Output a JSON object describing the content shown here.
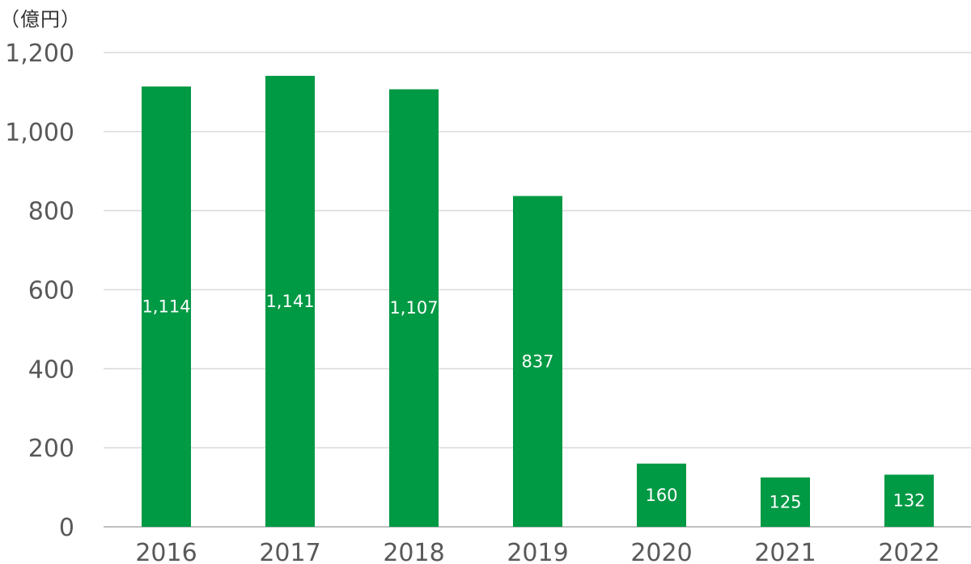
{
  "unit_label": "（億円）",
  "colors": {
    "bar": "#009944",
    "grid": "#d9d9d9",
    "tick_text": "#595959",
    "data_label": "#ffffff"
  },
  "chart_data": {
    "type": "bar",
    "categories": [
      "2016",
      "2017",
      "2018",
      "2019",
      "2020",
      "2021",
      "2022"
    ],
    "values": [
      1114,
      1141,
      1107,
      837,
      160,
      125,
      132
    ],
    "data_labels": [
      "1,114",
      "1,141",
      "1,107",
      "837",
      "160",
      "125",
      "132"
    ],
    "title": "",
    "xlabel": "",
    "ylabel": "",
    "ylim": [
      0,
      1200
    ],
    "yticks": [
      0,
      200,
      400,
      600,
      800,
      1000,
      1200
    ],
    "ytick_labels": [
      "0",
      "200",
      "400",
      "600",
      "800",
      "1,000",
      "1,200"
    ],
    "grid": true,
    "legend": "none"
  }
}
